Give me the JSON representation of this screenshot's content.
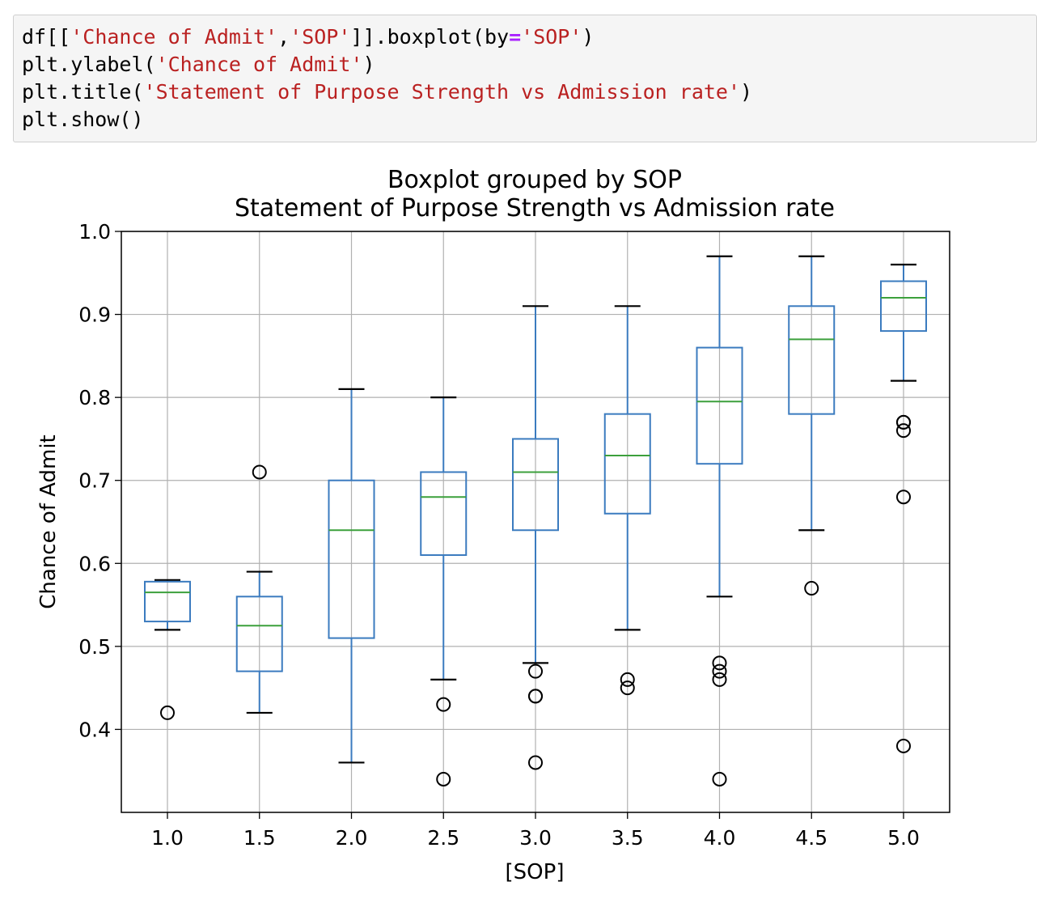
{
  "code_cell": {
    "lines": [
      [
        [
          "plain",
          "df[["
        ],
        [
          "str",
          "'Chance of Admit'"
        ],
        [
          "plain",
          ","
        ],
        [
          "str",
          "'SOP'"
        ],
        [
          "plain",
          "]].boxplot(by"
        ],
        [
          "op",
          "="
        ],
        [
          "str",
          "'SOP'"
        ],
        [
          "plain",
          ")"
        ]
      ],
      [
        [
          "plain",
          "plt.ylabel("
        ],
        [
          "str",
          "'Chance of Admit'"
        ],
        [
          "plain",
          ")"
        ]
      ],
      [
        [
          "plain",
          "plt.title("
        ],
        [
          "str",
          "'Statement of Purpose Strength vs Admission rate'"
        ],
        [
          "plain",
          ")"
        ]
      ],
      [
        [
          "plain",
          "plt.show()"
        ]
      ]
    ]
  },
  "chart_data": {
    "type": "boxplot",
    "suptitle": "Boxplot grouped by SOP",
    "title": "Statement of Purpose Strength vs Admission rate",
    "xlabel": "[SOP]",
    "ylabel": "Chance of Admit",
    "ylim": [
      0.3,
      1.0
    ],
    "yticks": [
      0.4,
      0.5,
      0.6,
      0.7,
      0.8,
      0.9,
      1.0
    ],
    "ytick_labels": [
      "0.4",
      "0.5",
      "0.6",
      "0.7",
      "0.8",
      "0.9",
      "1.0"
    ],
    "grid": true,
    "colors": {
      "box": "#3b7bbf",
      "median": "#3ca03c",
      "cap": "#000000",
      "flier": "#000000",
      "grid": "#b0b0b0"
    },
    "categories": [
      "1.0",
      "1.5",
      "2.0",
      "2.5",
      "3.0",
      "3.5",
      "4.0",
      "4.5",
      "5.0"
    ],
    "boxes": [
      {
        "label": "1.0",
        "whislo": 0.52,
        "q1": 0.53,
        "med": 0.565,
        "q3": 0.578,
        "whishi": 0.58,
        "fliers": [
          0.42
        ]
      },
      {
        "label": "1.5",
        "whislo": 0.42,
        "q1": 0.47,
        "med": 0.525,
        "q3": 0.56,
        "whishi": 0.59,
        "fliers": [
          0.71
        ]
      },
      {
        "label": "2.0",
        "whislo": 0.36,
        "q1": 0.51,
        "med": 0.64,
        "q3": 0.7,
        "whishi": 0.81,
        "fliers": []
      },
      {
        "label": "2.5",
        "whislo": 0.46,
        "q1": 0.61,
        "med": 0.68,
        "q3": 0.71,
        "whishi": 0.8,
        "fliers": [
          0.43,
          0.34
        ]
      },
      {
        "label": "3.0",
        "whislo": 0.48,
        "q1": 0.64,
        "med": 0.71,
        "q3": 0.75,
        "whishi": 0.91,
        "fliers": [
          0.47,
          0.44,
          0.44,
          0.36
        ]
      },
      {
        "label": "3.5",
        "whislo": 0.52,
        "q1": 0.66,
        "med": 0.73,
        "q3": 0.78,
        "whishi": 0.91,
        "fliers": [
          0.46,
          0.45
        ]
      },
      {
        "label": "4.0",
        "whislo": 0.56,
        "q1": 0.72,
        "med": 0.795,
        "q3": 0.86,
        "whishi": 0.97,
        "fliers": [
          0.48,
          0.47,
          0.46,
          0.34
        ]
      },
      {
        "label": "4.5",
        "whislo": 0.64,
        "q1": 0.78,
        "med": 0.87,
        "q3": 0.91,
        "whishi": 0.97,
        "fliers": [
          0.57
        ]
      },
      {
        "label": "5.0",
        "whislo": 0.82,
        "q1": 0.88,
        "med": 0.92,
        "q3": 0.94,
        "whishi": 0.96,
        "fliers": [
          0.77,
          0.77,
          0.76,
          0.68,
          0.38
        ]
      }
    ]
  }
}
